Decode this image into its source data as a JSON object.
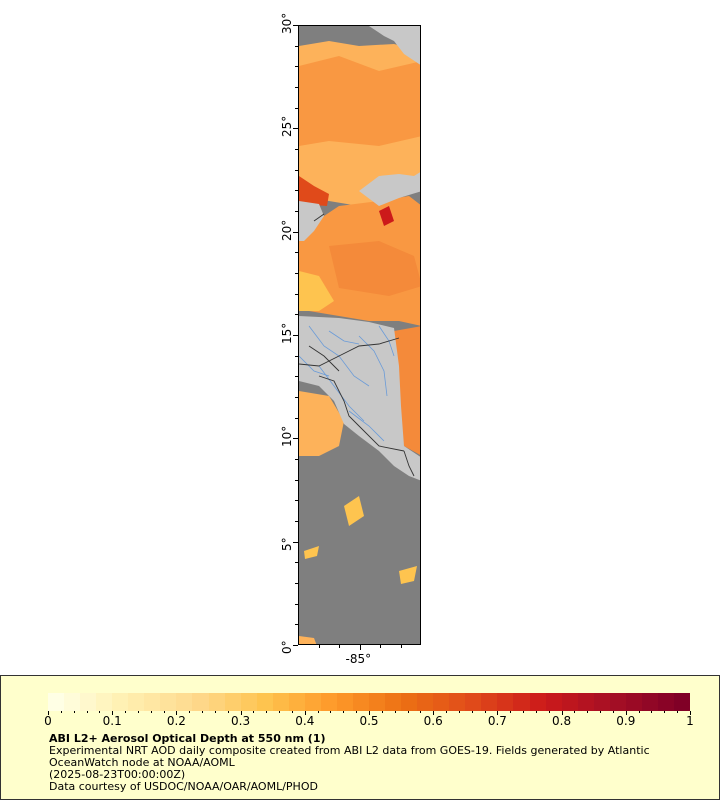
{
  "map": {
    "lat_labels": [
      "0°",
      "5°",
      "10°",
      "15°",
      "20°",
      "25°",
      "30°"
    ],
    "lon_labels": [
      "-85°"
    ],
    "lat_range": [
      0,
      30
    ],
    "lon_range": [
      -88,
      -82
    ],
    "background_colors": {
      "ocean_nodata": "#7f7f7f",
      "land": "#c8c8c8",
      "rivers": "#6a9bd8",
      "borders": "#333333"
    }
  },
  "legend": {
    "title": "ABI L2+ Aerosol Optical Depth at 550 nm (1)",
    "lines": [
      "Experimental NRT AOD daily composite created from ABI L2 data from GOES-19. Fields generated by Atlantic OceanWatch node at NOAA/AOML",
      "(2025-08-23T00:00:00Z)",
      "Data courtesy of USDOC/NOAA/OAR/AOML/PHOD"
    ],
    "colorbar": {
      "min": 0,
      "max": 1,
      "tick_labels": [
        "0",
        "0.1",
        "0.2",
        "0.3",
        "0.4",
        "0.5",
        "0.6",
        "0.7",
        "0.8",
        "0.9",
        "1"
      ],
      "stops": [
        "#ffffe5",
        "#fff0b0",
        "#fed98e",
        "#fec44f",
        "#fe9929",
        "#ec7014",
        "#e04a1a",
        "#cc1a1a",
        "#a50f25",
        "#800026"
      ]
    }
  }
}
